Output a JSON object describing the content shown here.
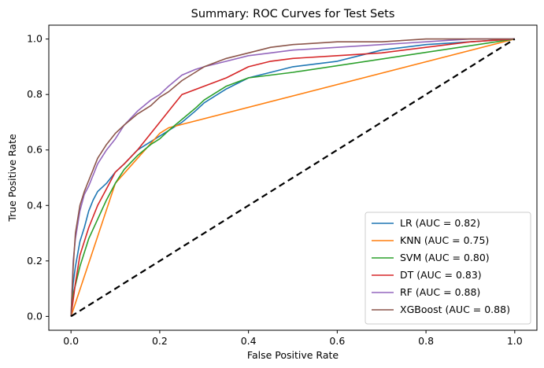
{
  "chart_data": {
    "type": "line",
    "title": "Summary: ROC Curves for Test Sets",
    "xlabel": "False Positive Rate",
    "ylabel": "True Positive Rate",
    "xlim": [
      -0.05,
      1.05
    ],
    "ylim": [
      -0.05,
      1.05
    ],
    "x_ticks": [
      "0.0",
      "0.2",
      "0.4",
      "0.6",
      "0.8",
      "1.0"
    ],
    "y_ticks": [
      "0.0",
      "0.2",
      "0.4",
      "0.6",
      "0.8",
      "1.0"
    ],
    "grid": false,
    "legend_position": "lower-right",
    "series": [
      {
        "name": "LR (AUC = 0.82)",
        "color": "#1f77b4",
        "x": [
          0.0,
          0.005,
          0.01,
          0.02,
          0.03,
          0.04,
          0.05,
          0.06,
          0.08,
          0.1,
          0.12,
          0.15,
          0.18,
          0.2,
          0.22,
          0.25,
          0.28,
          0.3,
          0.35,
          0.4,
          0.45,
          0.5,
          0.55,
          0.6,
          0.65,
          0.7,
          0.8,
          0.9,
          1.0
        ],
        "y": [
          0.0,
          0.12,
          0.18,
          0.27,
          0.32,
          0.38,
          0.42,
          0.45,
          0.48,
          0.52,
          0.55,
          0.6,
          0.63,
          0.65,
          0.67,
          0.7,
          0.74,
          0.77,
          0.82,
          0.86,
          0.88,
          0.9,
          0.91,
          0.92,
          0.94,
          0.96,
          0.98,
          0.99,
          1.0
        ]
      },
      {
        "name": "KNN (AUC = 0.75)",
        "color": "#ff7f0e",
        "x": [
          0.0,
          0.1,
          0.15,
          0.2,
          0.22,
          1.0
        ],
        "y": [
          0.0,
          0.48,
          0.57,
          0.66,
          0.68,
          1.0
        ]
      },
      {
        "name": "SVM (AUC = 0.80)",
        "color": "#2ca02c",
        "x": [
          0.0,
          0.005,
          0.02,
          0.04,
          0.06,
          0.08,
          0.1,
          0.12,
          0.15,
          0.18,
          0.2,
          0.22,
          0.25,
          0.28,
          0.3,
          0.35,
          0.4,
          0.45,
          0.5,
          1.0
        ],
        "y": [
          0.0,
          0.08,
          0.18,
          0.28,
          0.35,
          0.42,
          0.48,
          0.53,
          0.58,
          0.62,
          0.64,
          0.67,
          0.71,
          0.75,
          0.78,
          0.83,
          0.86,
          0.87,
          0.88,
          1.0
        ]
      },
      {
        "name": "DT (AUC = 0.83)",
        "color": "#d62728",
        "x": [
          0.0,
          0.01,
          0.02,
          0.04,
          0.06,
          0.08,
          0.1,
          0.12,
          0.15,
          0.18,
          0.2,
          0.23,
          0.25,
          0.3,
          0.35,
          0.4,
          0.45,
          0.5,
          0.6,
          0.7,
          0.8,
          0.9,
          1.0
        ],
        "y": [
          0.0,
          0.12,
          0.22,
          0.32,
          0.4,
          0.46,
          0.52,
          0.55,
          0.6,
          0.66,
          0.7,
          0.76,
          0.8,
          0.83,
          0.86,
          0.9,
          0.92,
          0.93,
          0.94,
          0.95,
          0.97,
          0.99,
          1.0
        ]
      },
      {
        "name": "RF (AUC = 0.88)",
        "color": "#9467bd",
        "x": [
          0.0,
          0.005,
          0.01,
          0.02,
          0.03,
          0.04,
          0.05,
          0.06,
          0.08,
          0.1,
          0.12,
          0.15,
          0.18,
          0.2,
          0.22,
          0.25,
          0.28,
          0.3,
          0.35,
          0.4,
          0.45,
          0.5,
          0.6,
          0.7,
          0.8,
          0.9,
          1.0
        ],
        "y": [
          0.0,
          0.2,
          0.28,
          0.38,
          0.44,
          0.47,
          0.51,
          0.55,
          0.6,
          0.64,
          0.69,
          0.74,
          0.78,
          0.8,
          0.83,
          0.87,
          0.89,
          0.9,
          0.92,
          0.94,
          0.95,
          0.96,
          0.97,
          0.98,
          0.99,
          1.0,
          1.0
        ]
      },
      {
        "name": "XGBoost (AUC = 0.88)",
        "color": "#8c564b",
        "x": [
          0.0,
          0.005,
          0.01,
          0.02,
          0.03,
          0.04,
          0.05,
          0.06,
          0.08,
          0.1,
          0.12,
          0.15,
          0.18,
          0.2,
          0.22,
          0.25,
          0.28,
          0.3,
          0.35,
          0.4,
          0.45,
          0.5,
          0.6,
          0.7,
          0.8,
          0.9,
          1.0
        ],
        "y": [
          0.0,
          0.18,
          0.3,
          0.4,
          0.45,
          0.49,
          0.53,
          0.57,
          0.62,
          0.66,
          0.69,
          0.73,
          0.76,
          0.79,
          0.81,
          0.85,
          0.88,
          0.9,
          0.93,
          0.95,
          0.97,
          0.98,
          0.99,
          0.99,
          1.0,
          1.0,
          1.0
        ]
      }
    ],
    "reference_line": {
      "x": [
        0,
        1
      ],
      "y": [
        0,
        1
      ],
      "color": "#000000",
      "style": "dashed"
    }
  }
}
